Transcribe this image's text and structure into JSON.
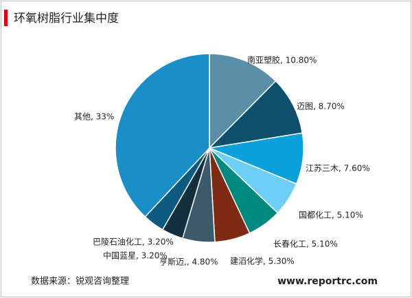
{
  "chart_data": {
    "type": "pie",
    "title": "环氧树脂行业集中度",
    "values": [
      10.8,
      8.7,
      7.6,
      5.1,
      5.1,
      5.3,
      4.8,
      3.2,
      3.2,
      33
    ],
    "value_labels": [
      "南亚塑胶, 10.80%",
      "迈图, 8.70%",
      "江苏三木, 7.60%",
      "国都化工, 5.10%",
      "长春化工, 5.10%",
      "建滔化学, 5.30%",
      "亨斯迈,, 4.80%",
      "中国蓝星, 3.20%",
      "巴陵石油化工, 3.20%",
      "其他, 33%"
    ],
    "colors": [
      "#5b8fa8",
      "#0e4f6b",
      "#0aa0dc",
      "#6dcff6",
      "#00897f",
      "#7f2a12",
      "#3d5a6b",
      "#14303f",
      "#0c5a80",
      "#1a8fc7"
    ]
  },
  "footer": {
    "source": "数据来源：锐观咨询整理",
    "website": "www.reportrc.com"
  }
}
